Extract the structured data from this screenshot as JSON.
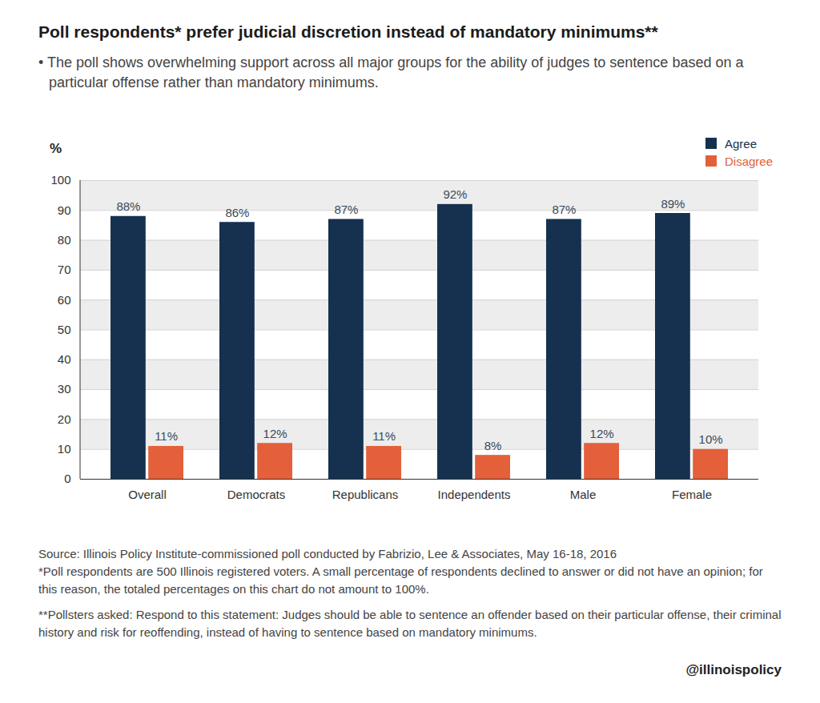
{
  "chart_data": {
    "type": "bar",
    "title": "Poll respondents* prefer judicial discretion instead of mandatory minimums**",
    "subtitle": "• The poll shows overwhelming support across all major groups for the ability of judges to sentence based on a particular offense rather than mandatory minimums.",
    "y_label": "%",
    "categories": [
      "Overall",
      "Democrats",
      "Republicans",
      "Independents",
      "Male",
      "Female"
    ],
    "series": [
      {
        "name": "Agree",
        "color": "#15314f",
        "values": [
          88,
          86,
          87,
          92,
          87,
          89
        ],
        "value_labels": [
          "88%",
          "86%",
          "87%",
          "92%",
          "87%",
          "89%"
        ]
      },
      {
        "name": "Disagree",
        "color": "#e3603a",
        "values": [
          11,
          12,
          11,
          8,
          12,
          10
        ],
        "value_labels": [
          "11%",
          "12%",
          "11%",
          "8%",
          "12%",
          "10%"
        ]
      }
    ],
    "ylim": [
      0,
      100
    ],
    "yticks": [
      0,
      10,
      20,
      30,
      40,
      50,
      60,
      70,
      80,
      90,
      100
    ],
    "grid": true,
    "legend": "top-right",
    "data_labels": true,
    "source": "Source: Illinois Policy Institute-commissioned poll conducted by Fabrizio, Lee & Associates, May 16-18, 2016",
    "footnotes": [
      "*Poll respondents are 500 Illinois registered voters. A small percentage of respondents declined to answer or did not have an opinion; for this reason, the totaled percentages on this chart do not amount to 100%.",
      "**Pollsters asked: Respond to this statement: Judges should be able to sentence an offender based on their particular offense, their criminal history and risk for reoffending, instead of having to sentence based on mandatory minimums."
    ],
    "credit": "@illinoispolicy"
  }
}
